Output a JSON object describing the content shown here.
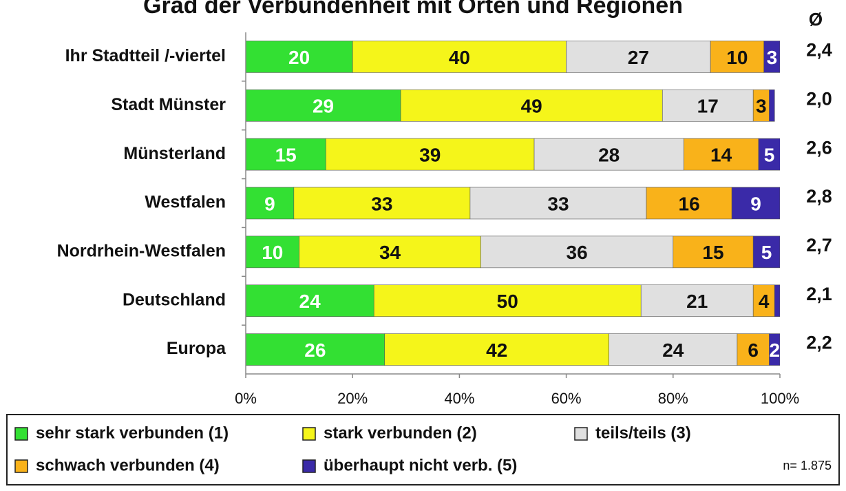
{
  "chart_data": {
    "type": "stacked_bar_horizontal",
    "title": "Grad der Verbundenheit mit Orten und Regionen",
    "categories": [
      "Ihr Stadtteil /-viertel",
      "Stadt Münster",
      "Münsterland",
      "Westfalen",
      "Nordrhein-Westfalen",
      "Deutschland",
      "Europa"
    ],
    "series": [
      {
        "name": "sehr stark verbunden (1)",
        "color": "#33e033",
        "values": [
          20,
          29,
          15,
          9,
          10,
          24,
          26
        ]
      },
      {
        "name": "stark verbunden (2)",
        "color": "#f5f51a",
        "values": [
          40,
          49,
          39,
          33,
          34,
          50,
          42
        ]
      },
      {
        "name": "teils/teils (3)",
        "color": "#e0e0e0",
        "values": [
          27,
          17,
          28,
          33,
          36,
          21,
          24
        ]
      },
      {
        "name": "schwach verbunden (4)",
        "color": "#f9b21a",
        "values": [
          10,
          3,
          14,
          16,
          15,
          4,
          6
        ]
      },
      {
        "name": "überhaupt nicht verb. (5)",
        "color": "#3a2aa8",
        "values": [
          3,
          1,
          5,
          9,
          5,
          1,
          2
        ]
      }
    ],
    "mean_header": "Ø",
    "mean_labels": [
      "2,4",
      "2,0",
      "2,6",
      "2,8",
      "2,7",
      "2,1",
      "2,2"
    ],
    "xlim": [
      0,
      100
    ],
    "xticks": [
      {
        "value": 0,
        "label": "0%"
      },
      {
        "value": 20,
        "label": "20%"
      },
      {
        "value": 40,
        "label": "40%"
      },
      {
        "value": 60,
        "label": "60%"
      },
      {
        "value": 80,
        "label": "80%"
      },
      {
        "value": 100,
        "label": "100%"
      }
    ],
    "note": "n= 1.875"
  }
}
